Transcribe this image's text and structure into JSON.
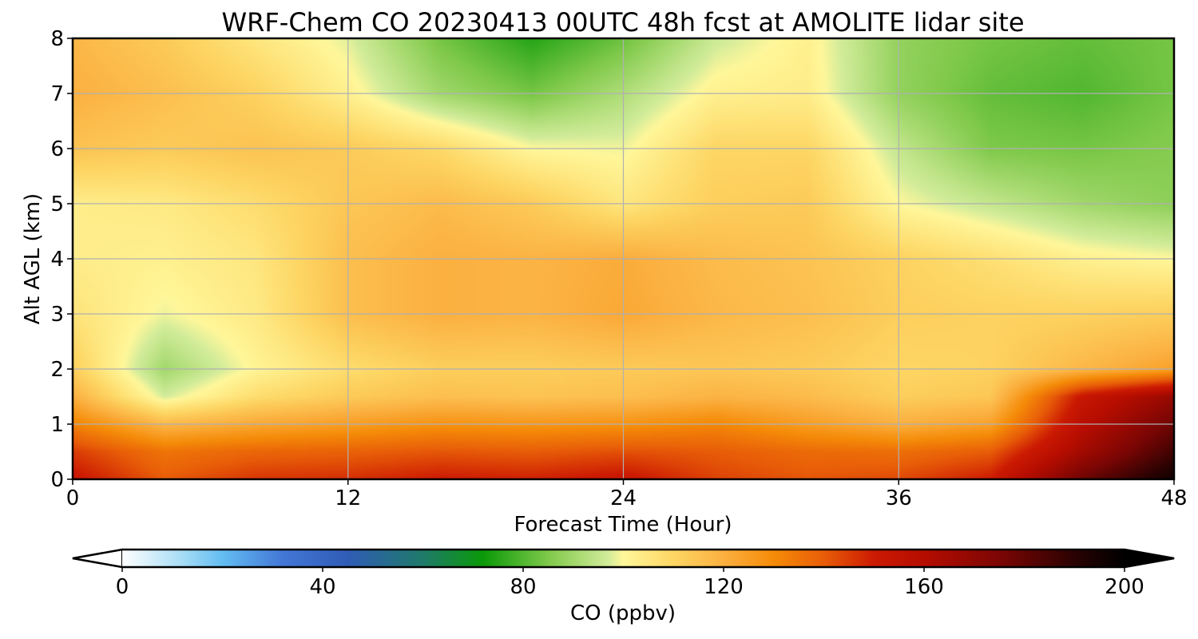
{
  "chart_data": {
    "type": "heatmap",
    "title": "WRF-Chem CO  20230413 00UTC 48h fcst at AMOLITE lidar site",
    "xlabel": "Forecast Time (Hour)",
    "ylabel": "Alt AGL (km)",
    "xlim": [
      0,
      48
    ],
    "ylim": [
      0,
      8
    ],
    "xticks": [
      0,
      12,
      24,
      36,
      48
    ],
    "xtick_labels": [
      "0",
      "12",
      "24",
      "36",
      "48"
    ],
    "yticks": [
      0,
      1,
      2,
      3,
      4,
      5,
      6,
      7,
      8
    ],
    "ytick_labels": [
      "0",
      "1",
      "2",
      "3",
      "4",
      "5",
      "6",
      "7",
      "8"
    ],
    "grid": true,
    "x": [
      0,
      4,
      8,
      12,
      16,
      20,
      24,
      28,
      32,
      36,
      40,
      44,
      48
    ],
    "y": [
      0,
      0.5,
      1,
      1.5,
      2,
      3,
      4,
      5,
      6,
      7,
      8
    ],
    "z": [
      [
        152,
        140,
        146,
        147,
        150,
        149,
        152,
        144,
        141,
        143,
        150,
        178,
        196
      ],
      [
        145,
        135,
        138,
        139,
        141,
        140,
        142,
        140,
        137,
        136,
        140,
        165,
        186
      ],
      [
        132,
        118,
        122,
        125,
        128,
        127,
        128,
        131,
        125,
        120,
        124,
        158,
        178
      ],
      [
        120,
        97,
        108,
        113,
        116,
        115,
        116,
        119,
        117,
        112,
        114,
        152,
        168
      ],
      [
        112,
        90,
        101,
        108,
        112,
        112,
        113,
        114,
        113,
        110,
        111,
        118,
        124
      ],
      [
        106,
        99,
        104,
        116,
        120,
        119,
        122,
        118,
        116,
        112,
        111,
        111,
        112
      ],
      [
        103,
        102,
        105,
        116,
        120,
        119,
        121,
        117,
        115,
        111,
        107,
        102,
        100
      ],
      [
        103,
        104,
        108,
        114,
        117,
        113,
        105,
        112,
        113,
        100,
        95,
        90,
        87
      ],
      [
        115,
        113,
        115,
        113,
        109,
        100,
        99,
        110,
        110,
        95,
        85,
        84,
        86
      ],
      [
        120,
        116,
        111,
        102,
        90,
        84,
        92,
        102,
        103,
        88,
        82,
        80,
        84
      ],
      [
        118,
        113,
        105,
        98,
        84,
        75,
        83,
        96,
        102,
        88,
        84,
        82,
        84
      ]
    ],
    "colorbar": {
      "label": "CO  (ppbv)",
      "vmin": 0,
      "vmax": 200,
      "ticks": [
        0,
        40,
        80,
        120,
        160,
        200
      ],
      "tick_labels": [
        "0",
        "40",
        "80",
        "120",
        "160",
        "200"
      ],
      "extend": "both",
      "stops": [
        {
          "v": 0,
          "c": "#ffffff"
        },
        {
          "v": 12,
          "c": "#a6dcf5"
        },
        {
          "v": 20,
          "c": "#63bdf2"
        },
        {
          "v": 32,
          "c": "#4377d6"
        },
        {
          "v": 45,
          "c": "#2f5cb6"
        },
        {
          "v": 60,
          "c": "#1f7a6a"
        },
        {
          "v": 72,
          "c": "#0a9908"
        },
        {
          "v": 85,
          "c": "#7fc94a"
        },
        {
          "v": 97,
          "c": "#d2ec9a"
        },
        {
          "v": 100,
          "c": "#fff79a"
        },
        {
          "v": 110,
          "c": "#fdd664"
        },
        {
          "v": 120,
          "c": "#fbb040"
        },
        {
          "v": 130,
          "c": "#f58b08"
        },
        {
          "v": 140,
          "c": "#e85d08"
        },
        {
          "v": 150,
          "c": "#cc1a03"
        },
        {
          "v": 160,
          "c": "#b50d00"
        },
        {
          "v": 175,
          "c": "#7c0604"
        },
        {
          "v": 190,
          "c": "#2a0202"
        },
        {
          "v": 200,
          "c": "#000000"
        }
      ]
    }
  }
}
